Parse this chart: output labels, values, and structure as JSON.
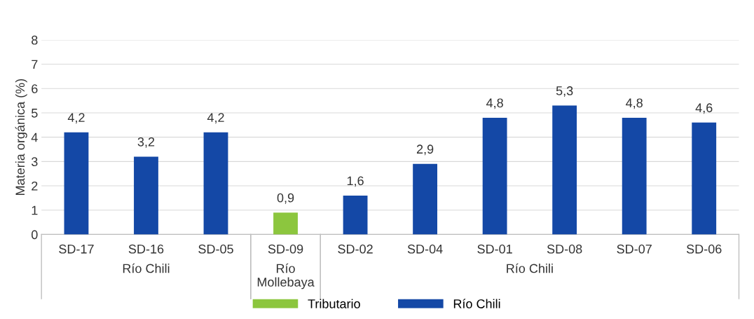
{
  "chart_data": {
    "type": "bar",
    "ylabel": "Materia orgánica (%)",
    "categories": [
      "SD-17",
      "SD-16",
      "SD-05",
      "SD-09",
      "SD-02",
      "SD-04",
      "SD-01",
      "SD-08",
      "SD-07",
      "SD-06"
    ],
    "series": [
      {
        "name": "Tributario",
        "color": "#8cc63e",
        "values": [
          null,
          null,
          null,
          0.9,
          null,
          null,
          null,
          null,
          null,
          null
        ],
        "value_labels": [
          null,
          null,
          null,
          "0,9",
          null,
          null,
          null,
          null,
          null,
          null
        ]
      },
      {
        "name": "Río Chili",
        "color": "#1448a6",
        "values": [
          4.2,
          3.2,
          4.2,
          null,
          1.6,
          2.9,
          4.8,
          5.3,
          4.8,
          4.6
        ],
        "value_labels": [
          "4,2",
          "3,2",
          "4,2",
          null,
          "1,6",
          "2,9",
          "4,8",
          "5,3",
          "4,8",
          "4,6"
        ]
      }
    ],
    "annotations": [
      "Río Chili",
      "Río\nMollebaya",
      "Río Chili"
    ],
    "ylim": [
      0,
      8
    ],
    "yticks": [
      0,
      1,
      2,
      3,
      4,
      5,
      6,
      7,
      8
    ],
    "grid": "y",
    "legend": "bottom"
  }
}
